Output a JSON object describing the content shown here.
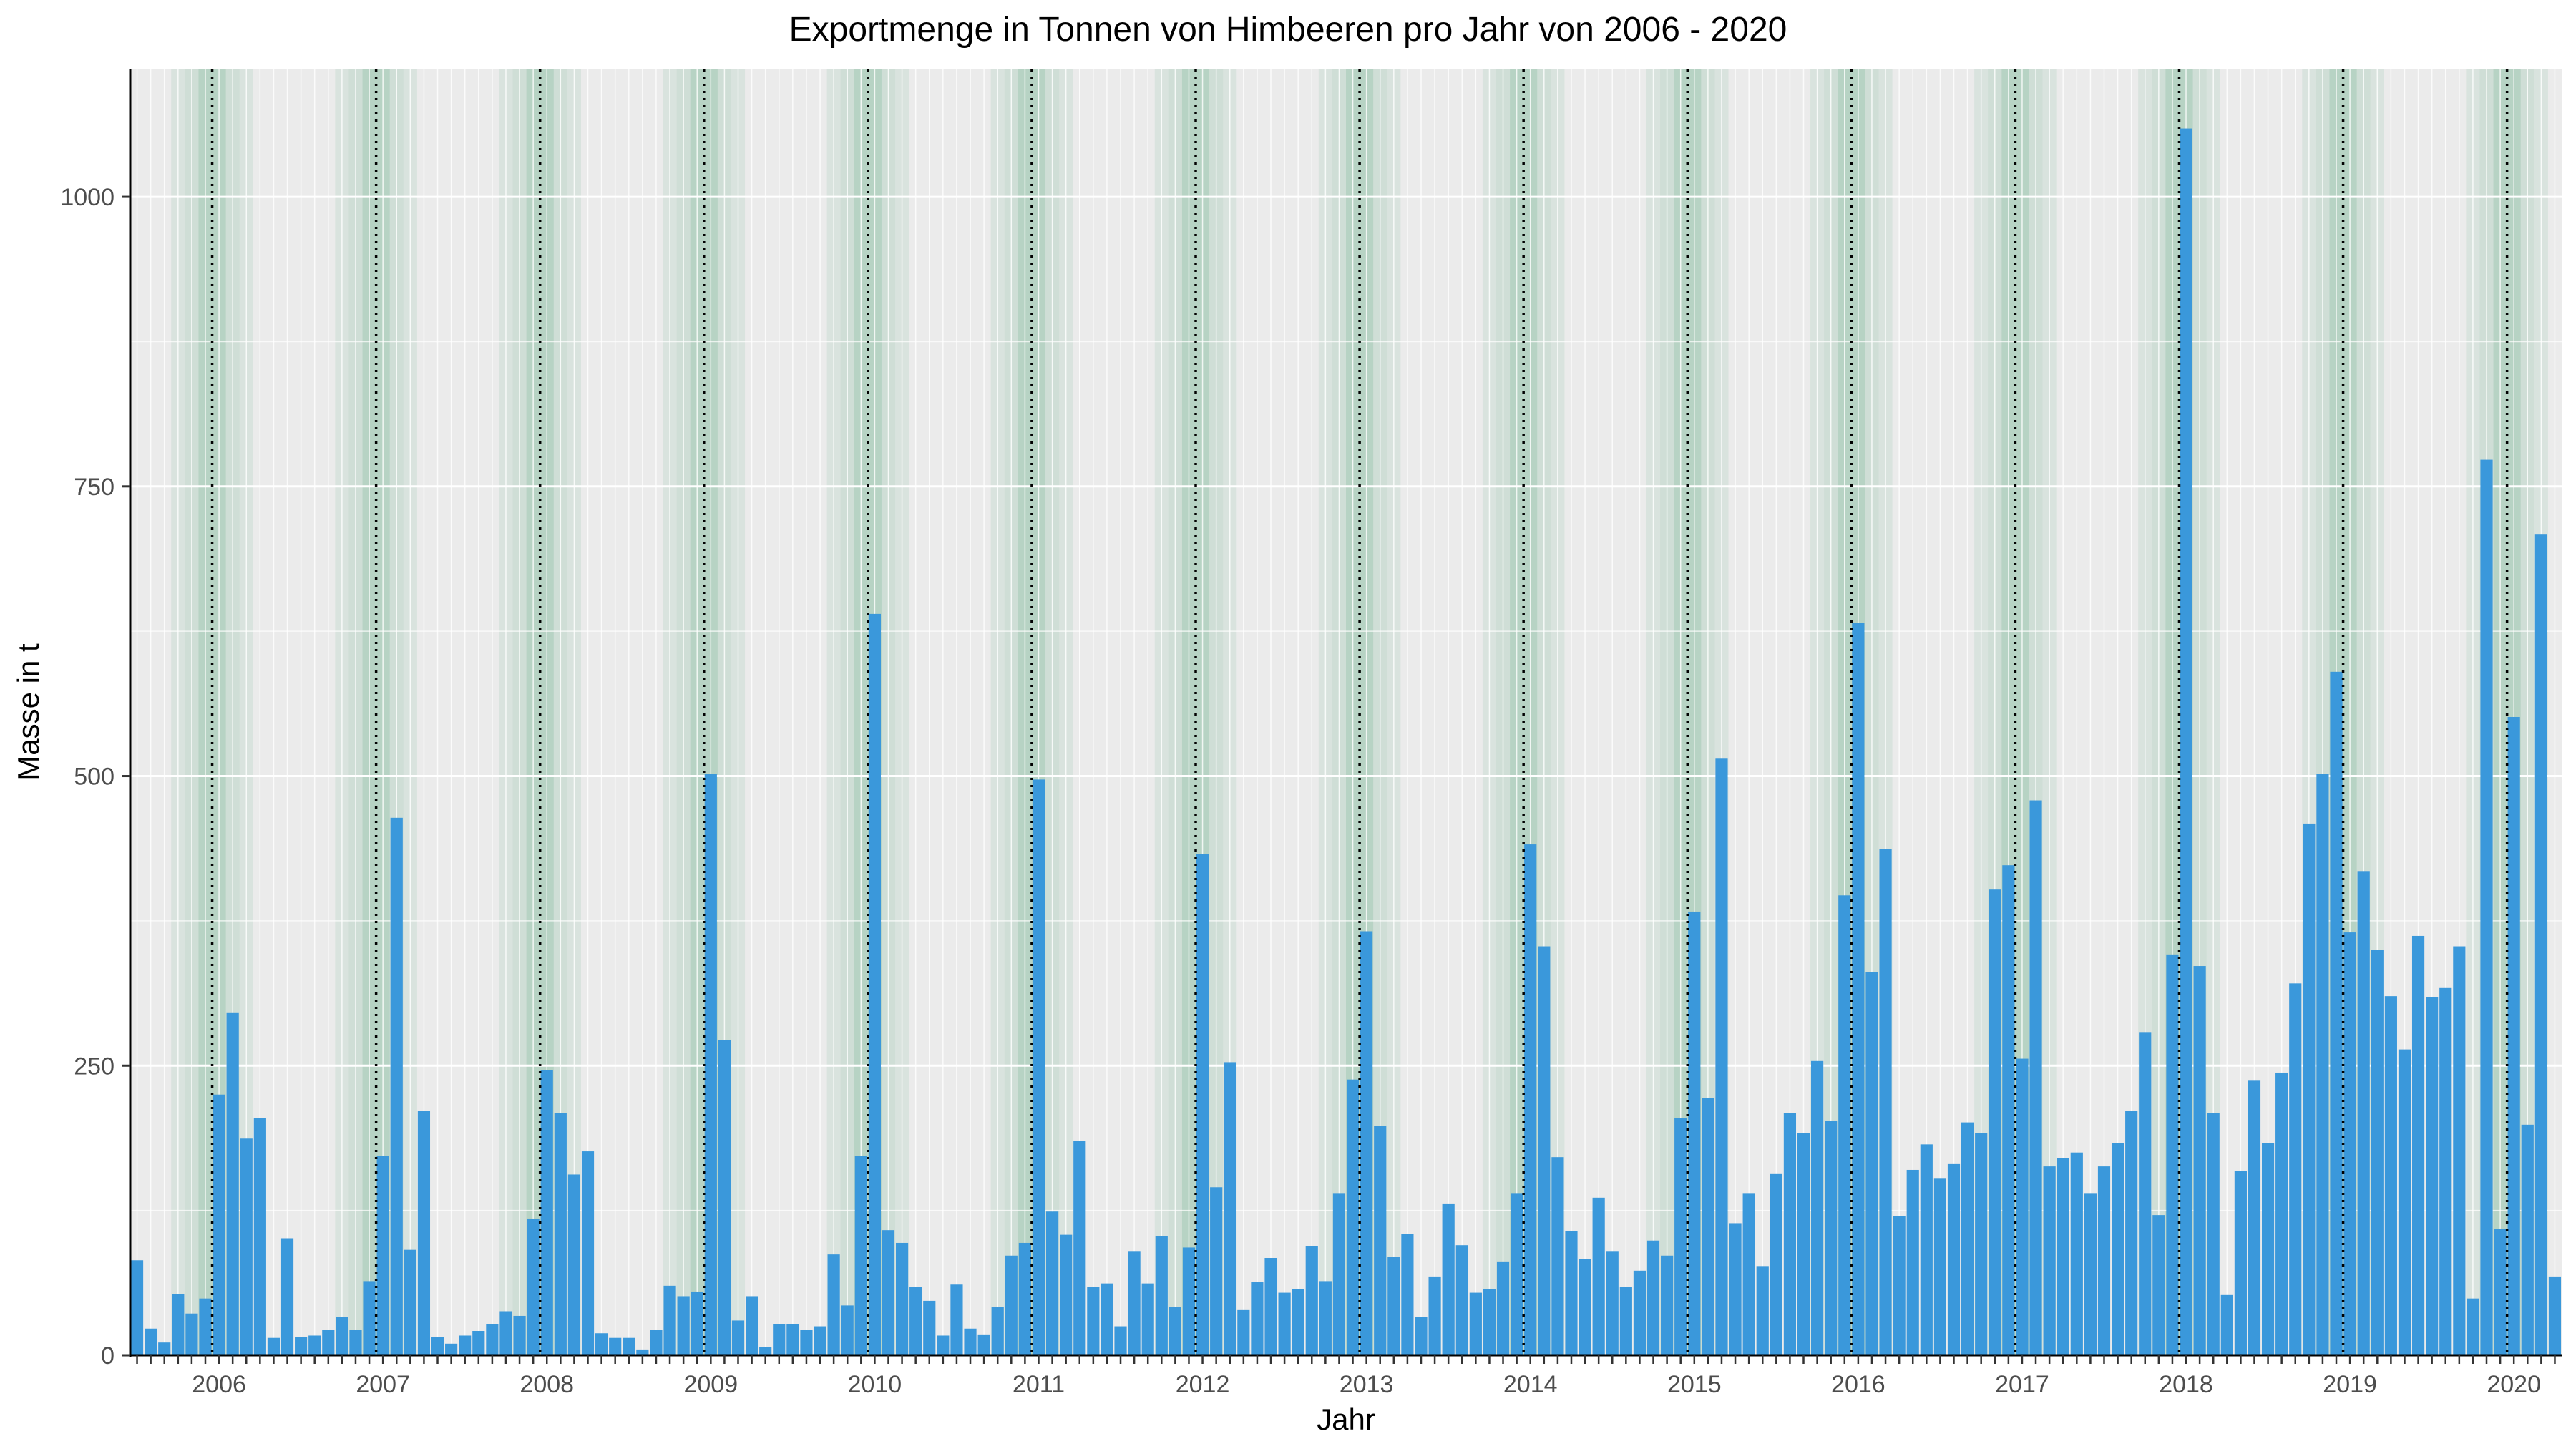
{
  "chart_data": {
    "type": "bar",
    "title": "Exportmenge in Tonnen von Himbeeren pro Jahr von 2006 - 2020",
    "xlabel": "Jahr",
    "ylabel": "Masse in t",
    "ylim": [
      0,
      1110
    ],
    "yticks": [
      0,
      250,
      500,
      750,
      1000
    ],
    "grid": true,
    "legend": "none",
    "x_tick_labels": [
      "2006",
      "2007",
      "2008",
      "2009",
      "2010",
      "2011",
      "2012",
      "2013",
      "2014",
      "2015",
      "2016",
      "2017",
      "2018",
      "2019",
      "2020"
    ],
    "start": "2005-07",
    "interval": "month",
    "year_separators": "dotted line between December and January",
    "season_shading": "green bands from October to March, strongest in December and January",
    "colors": {
      "bar": "#3A98DB",
      "panel": "#EBEBEB",
      "grid": "#FFFFFF",
      "season": "#3E9B6A"
    },
    "values": [
      82,
      23,
      11,
      53,
      36,
      49,
      225,
      296,
      187,
      205,
      15,
      101,
      16,
      17,
      22,
      33,
      22,
      64,
      172,
      464,
      91,
      211,
      16,
      10,
      17,
      21,
      27,
      38,
      34,
      118,
      246,
      209,
      156,
      176,
      19,
      15,
      15,
      5,
      22,
      60,
      51,
      55,
      502,
      272,
      30,
      51,
      7,
      27,
      27,
      22,
      25,
      87,
      43,
      172,
      640,
      108,
      97,
      59,
      47,
      17,
      61,
      23,
      18,
      42,
      86,
      97,
      497,
      124,
      104,
      185,
      59,
      62,
      25,
      90,
      62,
      103,
      42,
      93,
      433,
      145,
      253,
      39,
      63,
      84,
      54,
      57,
      94,
      64,
      140,
      238,
      366,
      198,
      85,
      105,
      33,
      68,
      131,
      95,
      54,
      57,
      81,
      140,
      441,
      353,
      171,
      107,
      83,
      136,
      90,
      59,
      73,
      99,
      86,
      205,
      383,
      222,
      515,
      114,
      140,
      77,
      157,
      209,
      192,
      254,
      202,
      397,
      632,
      331,
      437,
      120,
      160,
      182,
      153,
      165,
      201,
      192,
      402,
      423,
      256,
      479,
      163,
      170,
      175,
      140,
      163,
      183,
      211,
      279,
      121,
      346,
      1059,
      336,
      209,
      52,
      159,
      237,
      183,
      244,
      321,
      459,
      502,
      590,
      365,
      418,
      350,
      310,
      264,
      362,
      309,
      317,
      353,
      49,
      773,
      109,
      551,
      199,
      709,
      68
    ]
  }
}
